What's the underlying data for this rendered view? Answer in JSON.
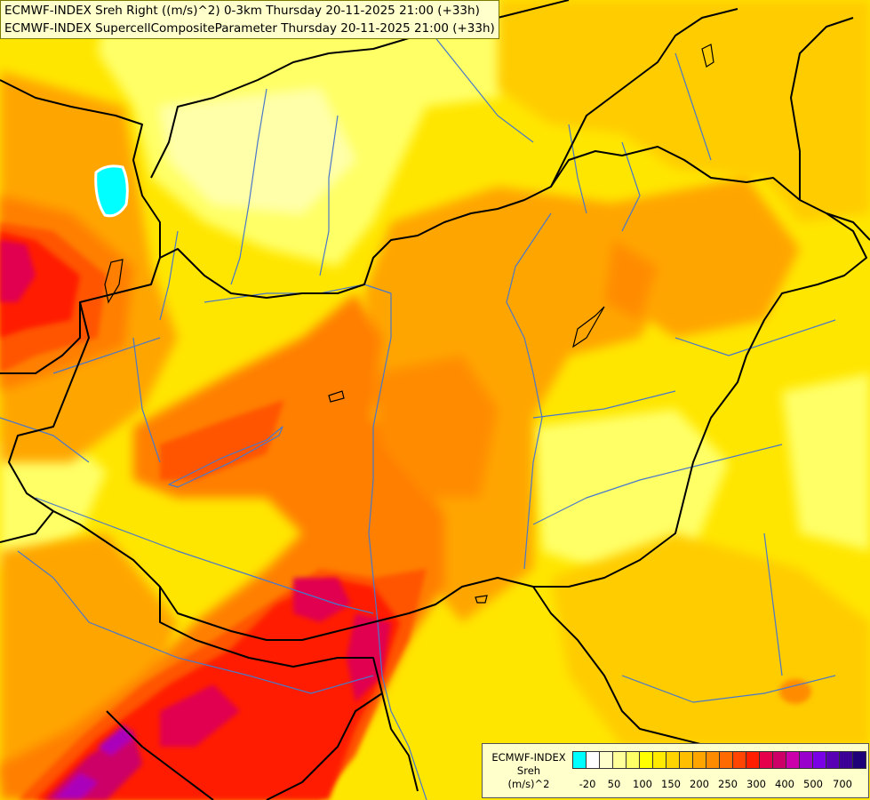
{
  "header": {
    "line1": "ECMWF-INDEX Sreh Right ((m/s)^2) 0-3km Thursday 20-11-2025 21:00 (+33h)",
    "line2": "ECMWF-INDEX SupercellCompositeParameter Thursday 20-11-2025 21:00 (+33h)"
  },
  "legend": {
    "title": [
      "ECMWF-INDEX",
      "Sreh",
      "(m/s)^2"
    ],
    "colors": [
      "#00ffff",
      "#ffffff",
      "#ffffcc",
      "#ffff99",
      "#ffff66",
      "#ffff00",
      "#ffea00",
      "#ffd400",
      "#ffbf00",
      "#ffa500",
      "#ff8c00",
      "#ff6a00",
      "#ff4500",
      "#ff1e00",
      "#e6004c",
      "#cc0066",
      "#cc00aa",
      "#9900cc",
      "#7a00e6",
      "#5a00b4",
      "#3c0096",
      "#1e0078"
    ],
    "labels": [
      "-20",
      "50",
      "100",
      "150",
      "200",
      "250",
      "300",
      "400",
      "500",
      "700"
    ]
  },
  "map": {
    "field_colors": {
      "background": "#ffe600",
      "light": "#ffff66",
      "pale": "#ffffaa",
      "mid": "#ffcc00",
      "orange": "#ffa500",
      "dark_orange": "#ff7f00",
      "red_orange": "#ff5500",
      "red": "#ff1a00",
      "crimson": "#e00050",
      "magenta": "#cc0066",
      "purple": "#aa00bb",
      "cyan": "#00ffff"
    },
    "border_color": "#000000",
    "river_color": "#4a78c8"
  }
}
